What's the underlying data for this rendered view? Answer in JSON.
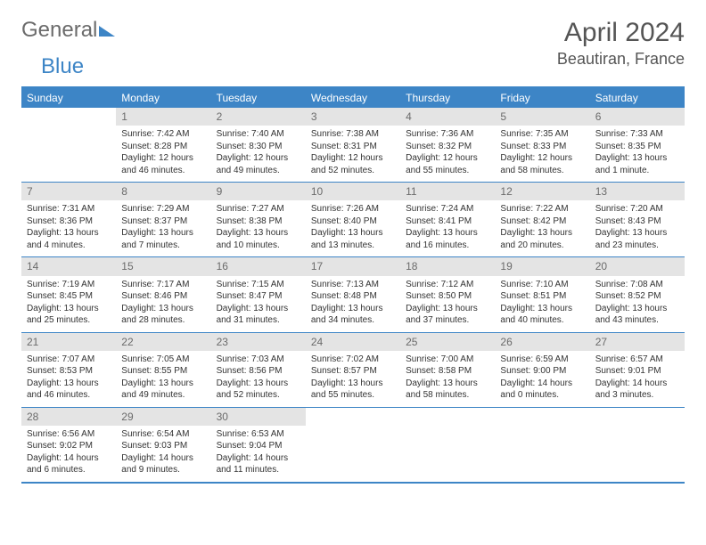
{
  "logo": {
    "word1": "General",
    "word2": "Blue"
  },
  "title": "April 2024",
  "location": "Beautiran, France",
  "headers": [
    "Sunday",
    "Monday",
    "Tuesday",
    "Wednesday",
    "Thursday",
    "Friday",
    "Saturday"
  ],
  "colors": {
    "accent": "#3d85c6",
    "daynum_bg": "#e4e4e4",
    "text": "#333333",
    "logo_gray": "#6b6b6b"
  },
  "weeks": [
    [
      {
        "empty": true
      },
      {
        "n": "1",
        "sr": "Sunrise: 7:42 AM",
        "ss": "Sunset: 8:28 PM",
        "dl": "Daylight: 12 hours and 46 minutes."
      },
      {
        "n": "2",
        "sr": "Sunrise: 7:40 AM",
        "ss": "Sunset: 8:30 PM",
        "dl": "Daylight: 12 hours and 49 minutes."
      },
      {
        "n": "3",
        "sr": "Sunrise: 7:38 AM",
        "ss": "Sunset: 8:31 PM",
        "dl": "Daylight: 12 hours and 52 minutes."
      },
      {
        "n": "4",
        "sr": "Sunrise: 7:36 AM",
        "ss": "Sunset: 8:32 PM",
        "dl": "Daylight: 12 hours and 55 minutes."
      },
      {
        "n": "5",
        "sr": "Sunrise: 7:35 AM",
        "ss": "Sunset: 8:33 PM",
        "dl": "Daylight: 12 hours and 58 minutes."
      },
      {
        "n": "6",
        "sr": "Sunrise: 7:33 AM",
        "ss": "Sunset: 8:35 PM",
        "dl": "Daylight: 13 hours and 1 minute."
      }
    ],
    [
      {
        "n": "7",
        "sr": "Sunrise: 7:31 AM",
        "ss": "Sunset: 8:36 PM",
        "dl": "Daylight: 13 hours and 4 minutes."
      },
      {
        "n": "8",
        "sr": "Sunrise: 7:29 AM",
        "ss": "Sunset: 8:37 PM",
        "dl": "Daylight: 13 hours and 7 minutes."
      },
      {
        "n": "9",
        "sr": "Sunrise: 7:27 AM",
        "ss": "Sunset: 8:38 PM",
        "dl": "Daylight: 13 hours and 10 minutes."
      },
      {
        "n": "10",
        "sr": "Sunrise: 7:26 AM",
        "ss": "Sunset: 8:40 PM",
        "dl": "Daylight: 13 hours and 13 minutes."
      },
      {
        "n": "11",
        "sr": "Sunrise: 7:24 AM",
        "ss": "Sunset: 8:41 PM",
        "dl": "Daylight: 13 hours and 16 minutes."
      },
      {
        "n": "12",
        "sr": "Sunrise: 7:22 AM",
        "ss": "Sunset: 8:42 PM",
        "dl": "Daylight: 13 hours and 20 minutes."
      },
      {
        "n": "13",
        "sr": "Sunrise: 7:20 AM",
        "ss": "Sunset: 8:43 PM",
        "dl": "Daylight: 13 hours and 23 minutes."
      }
    ],
    [
      {
        "n": "14",
        "sr": "Sunrise: 7:19 AM",
        "ss": "Sunset: 8:45 PM",
        "dl": "Daylight: 13 hours and 25 minutes."
      },
      {
        "n": "15",
        "sr": "Sunrise: 7:17 AM",
        "ss": "Sunset: 8:46 PM",
        "dl": "Daylight: 13 hours and 28 minutes."
      },
      {
        "n": "16",
        "sr": "Sunrise: 7:15 AM",
        "ss": "Sunset: 8:47 PM",
        "dl": "Daylight: 13 hours and 31 minutes."
      },
      {
        "n": "17",
        "sr": "Sunrise: 7:13 AM",
        "ss": "Sunset: 8:48 PM",
        "dl": "Daylight: 13 hours and 34 minutes."
      },
      {
        "n": "18",
        "sr": "Sunrise: 7:12 AM",
        "ss": "Sunset: 8:50 PM",
        "dl": "Daylight: 13 hours and 37 minutes."
      },
      {
        "n": "19",
        "sr": "Sunrise: 7:10 AM",
        "ss": "Sunset: 8:51 PM",
        "dl": "Daylight: 13 hours and 40 minutes."
      },
      {
        "n": "20",
        "sr": "Sunrise: 7:08 AM",
        "ss": "Sunset: 8:52 PM",
        "dl": "Daylight: 13 hours and 43 minutes."
      }
    ],
    [
      {
        "n": "21",
        "sr": "Sunrise: 7:07 AM",
        "ss": "Sunset: 8:53 PM",
        "dl": "Daylight: 13 hours and 46 minutes."
      },
      {
        "n": "22",
        "sr": "Sunrise: 7:05 AM",
        "ss": "Sunset: 8:55 PM",
        "dl": "Daylight: 13 hours and 49 minutes."
      },
      {
        "n": "23",
        "sr": "Sunrise: 7:03 AM",
        "ss": "Sunset: 8:56 PM",
        "dl": "Daylight: 13 hours and 52 minutes."
      },
      {
        "n": "24",
        "sr": "Sunrise: 7:02 AM",
        "ss": "Sunset: 8:57 PM",
        "dl": "Daylight: 13 hours and 55 minutes."
      },
      {
        "n": "25",
        "sr": "Sunrise: 7:00 AM",
        "ss": "Sunset: 8:58 PM",
        "dl": "Daylight: 13 hours and 58 minutes."
      },
      {
        "n": "26",
        "sr": "Sunrise: 6:59 AM",
        "ss": "Sunset: 9:00 PM",
        "dl": "Daylight: 14 hours and 0 minutes."
      },
      {
        "n": "27",
        "sr": "Sunrise: 6:57 AM",
        "ss": "Sunset: 9:01 PM",
        "dl": "Daylight: 14 hours and 3 minutes."
      }
    ],
    [
      {
        "n": "28",
        "sr": "Sunrise: 6:56 AM",
        "ss": "Sunset: 9:02 PM",
        "dl": "Daylight: 14 hours and 6 minutes."
      },
      {
        "n": "29",
        "sr": "Sunrise: 6:54 AM",
        "ss": "Sunset: 9:03 PM",
        "dl": "Daylight: 14 hours and 9 minutes."
      },
      {
        "n": "30",
        "sr": "Sunrise: 6:53 AM",
        "ss": "Sunset: 9:04 PM",
        "dl": "Daylight: 14 hours and 11 minutes."
      },
      {
        "empty": true
      },
      {
        "empty": true
      },
      {
        "empty": true
      },
      {
        "empty": true
      }
    ]
  ]
}
